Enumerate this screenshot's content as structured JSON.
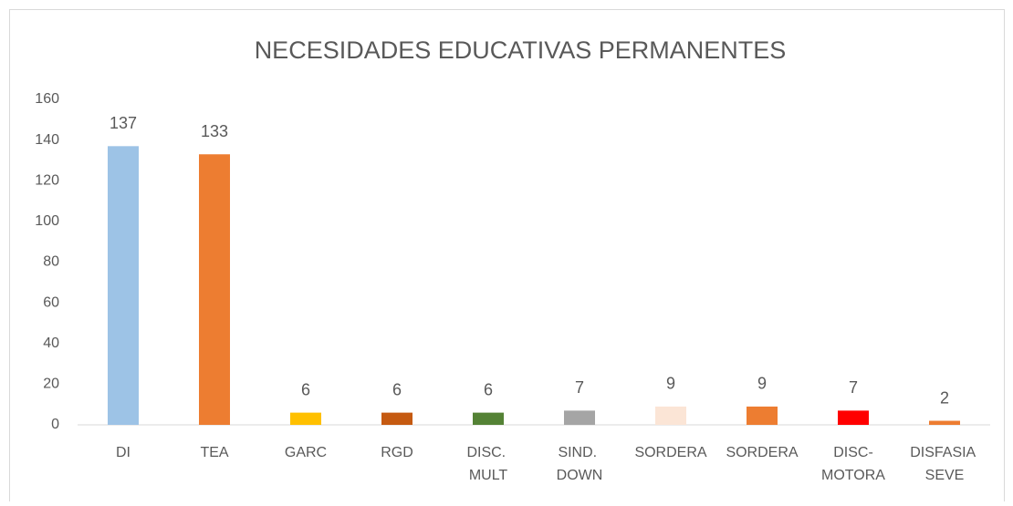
{
  "chart_data": {
    "type": "bar",
    "title": "NECESIDADES EDUCATIVAS PERMANENTES",
    "categories": [
      "DI",
      "TEA",
      "GARC",
      "RGD",
      "DISC. MULT",
      "SIND. DOWN",
      "SORDERA",
      "SORDERA",
      "DISC-MOTORA",
      "DISFASIA SEVE"
    ],
    "values": [
      137,
      133,
      6,
      6,
      6,
      7,
      9,
      9,
      7,
      2
    ],
    "colors": [
      "#9dc3e6",
      "#ed7d31",
      "#ffc000",
      "#c55a11",
      "#548235",
      "#a5a5a5",
      "#fbe5d6",
      "#ed7d31",
      "#ff0000",
      "#ed7d31"
    ],
    "ylim": [
      0,
      160
    ],
    "yticks": [
      0,
      20,
      40,
      60,
      80,
      100,
      120,
      140,
      160
    ],
    "grid": false
  }
}
